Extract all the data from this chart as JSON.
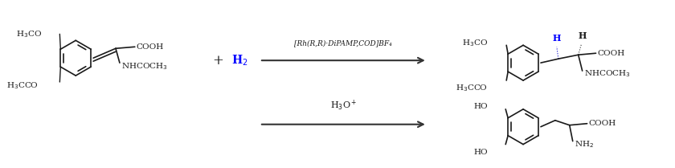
{
  "bg_color": "#ffffff",
  "text_color": "#1a1a1a",
  "blue_color": "#0000ff",
  "arrow_color": "#333333",
  "figsize": [
    8.4,
    2.09
  ],
  "dpi": 100,
  "reagent1_label": "[Rh(R,R)·DiPAMP,COD]BF₄",
  "reagent2_label": "H₃O⁺",
  "h2_label": "H₂",
  "plus_label": "+",
  "reaction1": {
    "reactant_groups": {
      "methoxy1": "H₃CO",
      "methoxy2": "H₃CCO",
      "cooh": "COOH",
      "nhcoch3": "NHCOCH₃"
    },
    "product_groups": {
      "methoxy1": "H₃CO",
      "methoxy2": "H₃CCO",
      "cooh": "COOH",
      "nhcoch3": "NHCOCH₃",
      "h_blue": "H",
      "h_black": "H"
    }
  },
  "reaction2": {
    "product_groups": {
      "oh1": "HO",
      "oh2": "HO",
      "cooh": "COOH",
      "nh2": "NH₂"
    }
  }
}
